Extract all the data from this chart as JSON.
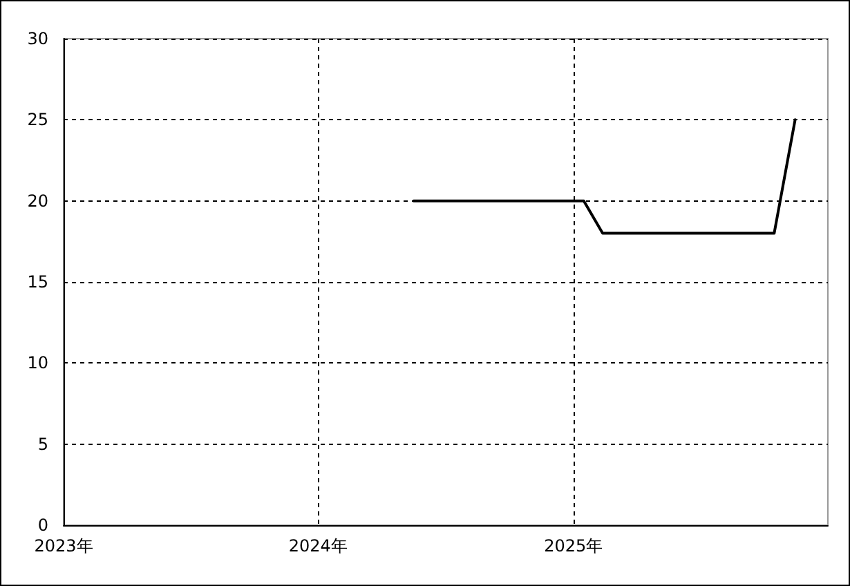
{
  "chart_data": {
    "type": "line",
    "x": [
      "2024-05-17",
      "2025-01-16",
      "2025-02-12",
      "2025-10-16",
      "2025-11-15"
    ],
    "series": [
      {
        "color": "#000000",
        "values": [
          20,
          20,
          18,
          18,
          25
        ]
      }
    ],
    "xlim": [
      "2023-01-01",
      "2026-01-01"
    ],
    "xticks": [
      {
        "value": "2023-01-01",
        "label": "2023年"
      },
      {
        "value": "2024-01-01",
        "label": "2024年"
      },
      {
        "value": "2025-01-01",
        "label": "2025年"
      }
    ],
    "ylim": [
      0,
      30
    ],
    "yticks": [
      0,
      5,
      10,
      15,
      20,
      25,
      30
    ],
    "grid": true,
    "marker": "none",
    "line_style": "solid"
  }
}
